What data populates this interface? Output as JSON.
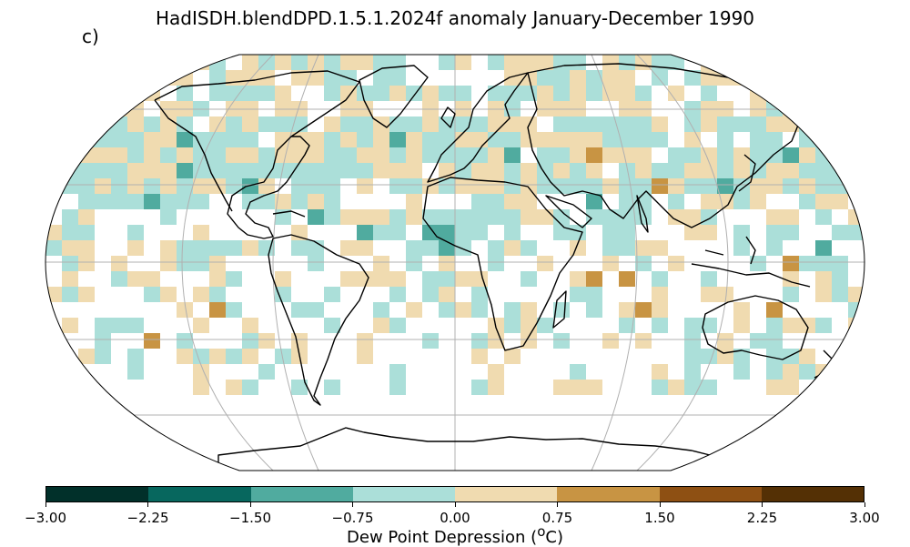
{
  "header": {
    "title": "HadISDH.blendDPD.1.5.1.2024f anomaly January-December 1990",
    "panel_label": "c)"
  },
  "colorbar": {
    "label": "Dew Point Depression (",
    "label_unit_sup": "o",
    "label_unit_tail": "C)",
    "ticks": [
      "−3.00",
      "−2.25",
      "−1.50",
      "−0.75",
      "0.00",
      "0.75",
      "1.50",
      "2.25",
      "3.00"
    ],
    "colors": [
      "#01302a",
      "#07675e",
      "#50ab9f",
      "#abdfd9",
      "#f0dbb0",
      "#c89443",
      "#8e5013",
      "#543005"
    ]
  },
  "map": {
    "projection": "Robinson",
    "gridlines": true,
    "coastlines": true,
    "variable": "Dew point depression anomaly",
    "period": "January-December 1990"
  }
}
